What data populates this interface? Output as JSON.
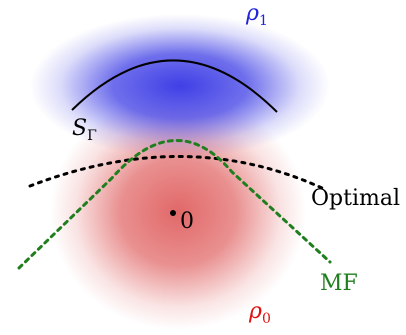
{
  "colors": {
    "blob_blue": "#3f3fe6",
    "blob_red": "#e06060",
    "rho1_text": "#2222dd",
    "rho0_text": "#dd1111",
    "boundary_S": "#000000",
    "optimal_curve": "#000000",
    "mf_curve": "#1f7f1f",
    "mf_text": "#1f7f1f",
    "origin_point": "#000000"
  },
  "labels": {
    "rho1": {
      "main": "ρ",
      "sub": "1"
    },
    "rho0": {
      "main": "ρ",
      "sub": "0"
    },
    "S_gamma": {
      "main": "S",
      "sub": "Γ"
    },
    "optimal": "Optimal",
    "mf": "MF",
    "origin": "0"
  }
}
